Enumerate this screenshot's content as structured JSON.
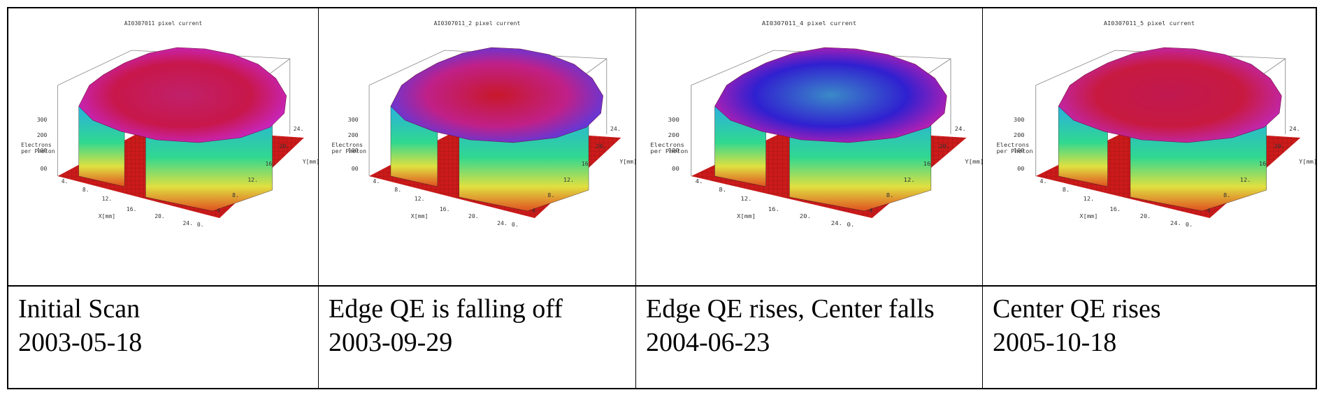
{
  "panels": [
    {
      "plot_title": "AI0307011 pixel current",
      "z_axis_label": [
        "Electrons",
        "per Photon"
      ],
      "x_axis_label": "X[mm]",
      "y_axis_label": "Y[mm]",
      "z_ticks": [
        "300",
        "200",
        "100",
        "00"
      ],
      "x_ticks": [
        "4.",
        "8.",
        "12.",
        "16.",
        "20.",
        "24."
      ],
      "y_ticks": [
        "0.",
        "4.",
        "8.",
        "12.",
        "16.",
        "20.",
        "24."
      ],
      "caption_line1": "Initial Scan",
      "caption_line2": "2003-05-18",
      "surface_colors": {
        "top": "#c8174a",
        "center": "#c0206a",
        "edge": "#c826c8"
      }
    },
    {
      "plot_title": "AI0307011_2 pixel current",
      "z_axis_label": [
        "Electrons",
        "per Photon"
      ],
      "x_axis_label": "X[mm]",
      "y_axis_label": "Y[mm]",
      "z_ticks": [
        "300",
        "200",
        "100",
        "00"
      ],
      "x_ticks": [
        "4.",
        "8.",
        "12.",
        "16.",
        "20.",
        "24."
      ],
      "y_ticks": [
        "0.",
        "4.",
        "8.",
        "12.",
        "16.",
        "20.",
        "24."
      ],
      "caption_line1": "Edge QE is falling off",
      "caption_line2": "2003-09-29",
      "surface_colors": {
        "top": "#c02088",
        "center": "#c8182a",
        "edge": "#5a3ae0"
      }
    },
    {
      "plot_title": "AI0307011_4 pixel current",
      "z_axis_label": [
        "Electrons",
        "per Photon"
      ],
      "x_axis_label": "X[mm]",
      "y_axis_label": "Y[mm]",
      "z_ticks": [
        "300",
        "200",
        "100",
        "00"
      ],
      "x_ticks": [
        "4.",
        "8.",
        "12.",
        "16.",
        "20.",
        "24."
      ],
      "y_ticks": [
        "0.",
        "4.",
        "8.",
        "12.",
        "16.",
        "20.",
        "24."
      ],
      "caption_line1": "Edge QE rises, Center falls",
      "caption_line2": "2004-06-23",
      "surface_colors": {
        "top": "#3020d0",
        "center": "#3a8ac8",
        "edge": "#c020b0"
      }
    },
    {
      "plot_title": "AI0307011_5 pixel current",
      "z_axis_label": [
        "Electrons",
        "per Photon"
      ],
      "x_axis_label": "X[mm]",
      "y_axis_label": "Y[mm]",
      "z_ticks": [
        "300",
        "200",
        "100",
        "00"
      ],
      "x_ticks": [
        "4.",
        "8.",
        "12.",
        "16.",
        "20.",
        "24."
      ],
      "y_ticks": [
        "0.",
        "4.",
        "8.",
        "12.",
        "16.",
        "20.",
        "24."
      ],
      "caption_line1": "Center QE rises",
      "caption_line2": "2005-10-18",
      "surface_colors": {
        "top": "#c81a40",
        "center": "#c01850",
        "edge": "#c028b8"
      }
    }
  ]
}
